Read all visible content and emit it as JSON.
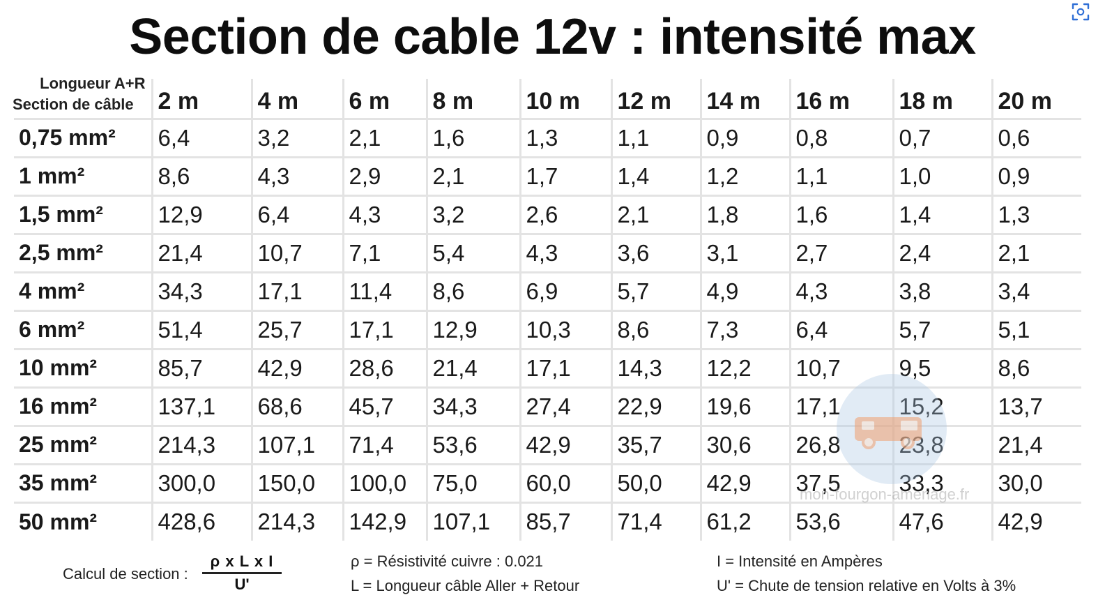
{
  "title": "Section de cable 12v : intensité max",
  "corner": {
    "top": "Longueur A+R",
    "bottom": "Section de câble"
  },
  "columns": [
    "2 m",
    "4 m",
    "6 m",
    "8 m",
    "10 m",
    "12 m",
    "14 m",
    "16 m",
    "18 m",
    "20 m"
  ],
  "rows": [
    {
      "section": "0,75 mm²",
      "values": [
        "6,4",
        "3,2",
        "2,1",
        "1,6",
        "1,3",
        "1,1",
        "0,9",
        "0,8",
        "0,7",
        "0,6"
      ]
    },
    {
      "section": "1 mm²",
      "values": [
        "8,6",
        "4,3",
        "2,9",
        "2,1",
        "1,7",
        "1,4",
        "1,2",
        "1,1",
        "1,0",
        "0,9"
      ]
    },
    {
      "section": "1,5 mm²",
      "values": [
        "12,9",
        "6,4",
        "4,3",
        "3,2",
        "2,6",
        "2,1",
        "1,8",
        "1,6",
        "1,4",
        "1,3"
      ]
    },
    {
      "section": "2,5 mm²",
      "values": [
        "21,4",
        "10,7",
        "7,1",
        "5,4",
        "4,3",
        "3,6",
        "3,1",
        "2,7",
        "2,4",
        "2,1"
      ]
    },
    {
      "section": "4 mm²",
      "values": [
        "34,3",
        "17,1",
        "11,4",
        "8,6",
        "6,9",
        "5,7",
        "4,9",
        "4,3",
        "3,8",
        "3,4"
      ]
    },
    {
      "section": "6 mm²",
      "values": [
        "51,4",
        "25,7",
        "17,1",
        "12,9",
        "10,3",
        "8,6",
        "7,3",
        "6,4",
        "5,7",
        "5,1"
      ]
    },
    {
      "section": "10 mm²",
      "values": [
        "85,7",
        "42,9",
        "28,6",
        "21,4",
        "17,1",
        "14,3",
        "12,2",
        "10,7",
        "9,5",
        "8,6"
      ]
    },
    {
      "section": "16 mm²",
      "values": [
        "137,1",
        "68,6",
        "45,7",
        "34,3",
        "27,4",
        "22,9",
        "19,6",
        "17,1",
        "15,2",
        "13,7"
      ]
    },
    {
      "section": "25 mm²",
      "values": [
        "214,3",
        "107,1",
        "71,4",
        "53,6",
        "42,9",
        "35,7",
        "30,6",
        "26,8",
        "23,8",
        "21,4"
      ]
    },
    {
      "section": "35 mm²",
      "values": [
        "300,0",
        "150,0",
        "100,0",
        "75,0",
        "60,0",
        "50,0",
        "42,9",
        "37,5",
        "33,3",
        "30,0"
      ]
    },
    {
      "section": "50 mm²",
      "values": [
        "428,6",
        "214,3",
        "142,9",
        "107,1",
        "85,7",
        "71,4",
        "61,2",
        "53,6",
        "47,6",
        "42,9"
      ]
    }
  ],
  "footer": {
    "formula_label": "Calcul de section :",
    "formula_numerator": "ρ x L x I",
    "formula_denominator": "U'",
    "note_rho": "ρ = Résistivité cuivre : 0.021",
    "note_length": "L = Longueur câble Aller + Retour",
    "note_intensity": "I = Intensité en Ampères",
    "note_voltage": "U' = Chute de tension relative en Volts à 3%"
  },
  "watermark": "mon-fourgon-amenage.fr",
  "icons": {
    "corner_button": "screen-capture-icon",
    "watermark_logo": "van-icon"
  },
  "colors": {
    "grid_lines": "#e3e3e3",
    "watermark_circle": "#aac6e1",
    "watermark_van": "#f0a070"
  }
}
